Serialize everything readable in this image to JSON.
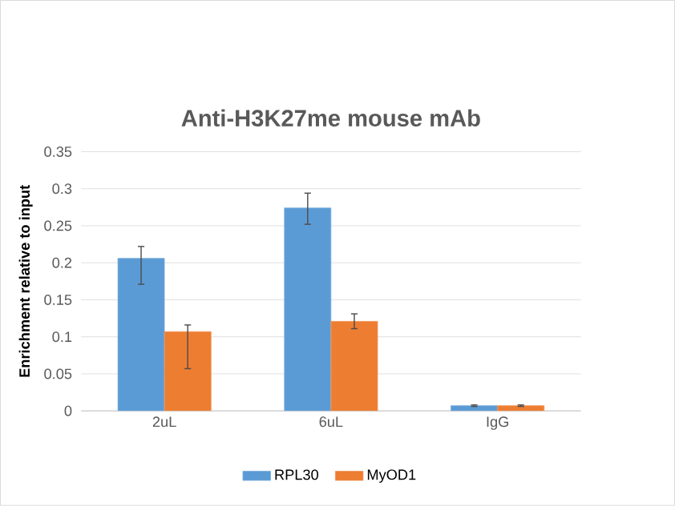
{
  "chart_data": {
    "type": "bar",
    "title": "Anti-H3K27me mouse mAb",
    "ylabel": "Enrichment relative to input",
    "categories": [
      "2uL",
      "6uL",
      "IgG"
    ],
    "series": [
      {
        "name": "RPL30",
        "color": "#5b9bd5",
        "values": [
          0.206,
          0.274,
          0.007
        ],
        "errors": [
          [
            0.171,
            0.222
          ],
          [
            0.252,
            0.294
          ],
          [
            0.006,
            0.008
          ]
        ]
      },
      {
        "name": "MyOD1",
        "color": "#ed7d31",
        "values": [
          0.107,
          0.121,
          0.007
        ],
        "errors": [
          [
            0.057,
            0.116
          ],
          [
            0.111,
            0.131
          ],
          [
            0.006,
            0.008
          ]
        ]
      }
    ],
    "ylim": [
      0,
      0.35
    ],
    "yticks": [
      0,
      0.05,
      0.1,
      0.15,
      0.2,
      0.25,
      0.3,
      0.35
    ],
    "grid": "y",
    "legend": "bottom"
  }
}
